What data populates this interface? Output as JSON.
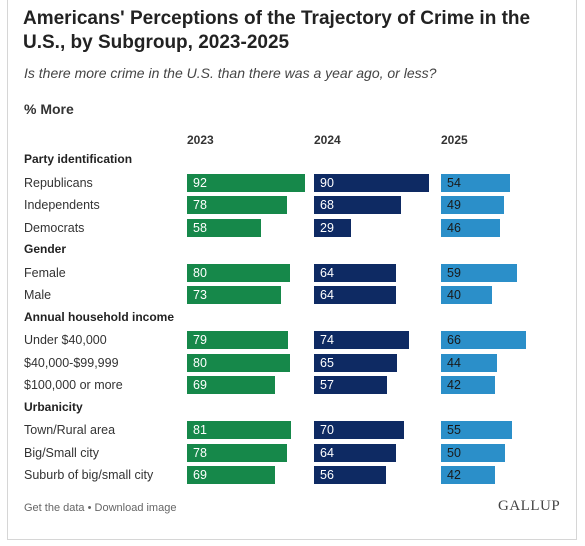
{
  "title": "Americans' Perceptions of the Trajectory of Crime in the U.S., by Subgroup, 2023-2025",
  "subtitle": "Is there more crime in the U.S. than there was a year ago, or less?",
  "measure_label": "% More",
  "footer": {
    "get_data": "Get the data",
    "separator": " • ",
    "download": "Download image"
  },
  "brand": "GALLUP",
  "colors": {
    "2023": "#16884a",
    "2024": "#0e2a63",
    "2025": "#2b8fc9"
  },
  "chart_data": {
    "type": "bar",
    "orientation": "horizontal",
    "title": "Americans' Perceptions of the Trajectory of Crime in the U.S., by Subgroup, 2023-2025",
    "subtitle": "Is there more crime in the U.S. than there was a year ago, or less?",
    "value_label": "% More",
    "series_names": [
      "2023",
      "2024",
      "2025"
    ],
    "xlim": [
      0,
      100
    ],
    "grid": false,
    "groups": [
      {
        "name": "Party identification",
        "rows": [
          {
            "label": "Republicans",
            "values": [
              92,
              90,
              54
            ]
          },
          {
            "label": "Independents",
            "values": [
              78,
              68,
              49
            ]
          },
          {
            "label": "Democrats",
            "values": [
              58,
              29,
              46
            ]
          }
        ]
      },
      {
        "name": "Gender",
        "rows": [
          {
            "label": "Female",
            "values": [
              80,
              64,
              59
            ]
          },
          {
            "label": "Male",
            "values": [
              73,
              64,
              40
            ]
          }
        ]
      },
      {
        "name": "Annual household income",
        "rows": [
          {
            "label": "Under $40,000",
            "values": [
              79,
              74,
              66
            ]
          },
          {
            "label": "$40,000-$99,999",
            "values": [
              80,
              65,
              44
            ]
          },
          {
            "label": "$100,000 or more",
            "values": [
              69,
              57,
              42
            ]
          }
        ]
      },
      {
        "name": "Urbanicity",
        "rows": [
          {
            "label": "Town/Rural area",
            "values": [
              81,
              70,
              55
            ]
          },
          {
            "label": "Big/Small city",
            "values": [
              78,
              64,
              50
            ]
          },
          {
            "label": "Suburb of big/small city",
            "values": [
              69,
              56,
              42
            ]
          }
        ]
      }
    ]
  }
}
